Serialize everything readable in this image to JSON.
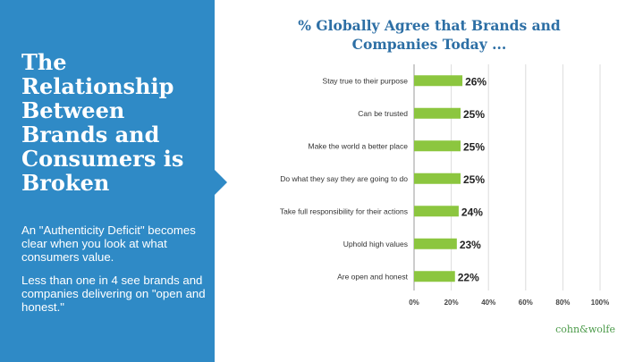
{
  "panel": {
    "headline": "The Relationship Between Brands and Consumers is Broken",
    "paragraph_1": "An \"Authenticity Deficit\" becomes clear when you look at what consumers value.",
    "paragraph_2": "Less than one in 4 see brands and companies delivering on \"open and honest.\""
  },
  "brand": {
    "logo_text": "cohn&wolfe"
  },
  "colors": {
    "panel_blue": "#2f8ac6",
    "bar_green": "#8cc63f",
    "title_blue": "#2d6fa5"
  },
  "chart_data": {
    "type": "bar",
    "orientation": "horizontal",
    "title": "% Globally Agree that Brands and Companies Today ...",
    "categories": [
      "Stay true to their purpose",
      "Can be trusted",
      "Make the world a better place",
      "Do what they say they are going to do",
      "Take full responsibility for their actions",
      "Uphold high values",
      "Are open and honest"
    ],
    "values": [
      26,
      25,
      25,
      25,
      24,
      23,
      22
    ],
    "value_labels": [
      "26%",
      "25%",
      "25%",
      "25%",
      "24%",
      "23%",
      "22%"
    ],
    "xlim": [
      0,
      100
    ],
    "xticks": [
      0,
      20,
      40,
      60,
      80,
      100
    ],
    "xtick_labels": [
      "0%",
      "20%",
      "40%",
      "60%",
      "80%",
      "100%"
    ],
    "grid": "vertical"
  }
}
